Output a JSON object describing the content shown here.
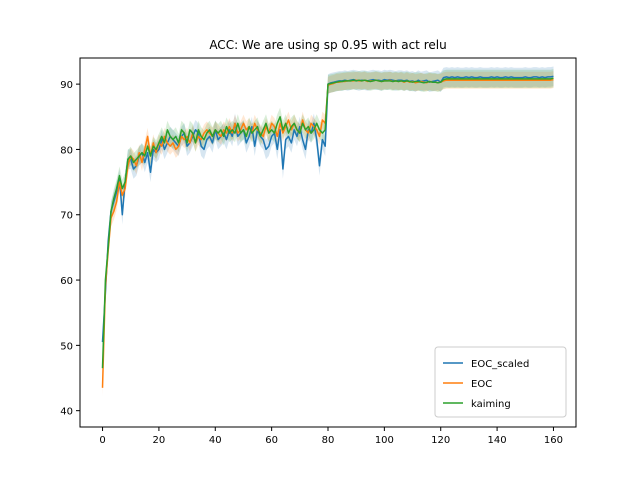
{
  "chart_data": {
    "type": "line",
    "title": "ACC: We are using sp 0.95 with act relu",
    "xlabel": "",
    "ylabel": "",
    "xlim": [
      -8,
      168
    ],
    "ylim": [
      37.5,
      94
    ],
    "xticks": [
      0,
      20,
      40,
      60,
      80,
      100,
      120,
      140,
      160
    ],
    "yticks": [
      40,
      50,
      60,
      70,
      80,
      90
    ],
    "grid": false,
    "legend_position": "lower right",
    "x_start": 0,
    "series": [
      {
        "name": "EOC_scaled",
        "color": "#1f77b4",
        "band_halfwidth": 1.5,
        "values": [
          50.5,
          58,
          66,
          70.5,
          72,
          73.5,
          75.5,
          70,
          75,
          78.5,
          78.5,
          77,
          77.5,
          79,
          79.5,
          78,
          79.5,
          76.5,
          80,
          79.5,
          80,
          81.5,
          80,
          81,
          82,
          81.5,
          81,
          80.5,
          82,
          82.5,
          80.5,
          81,
          82,
          83,
          82.5,
          80.5,
          80,
          81.5,
          82,
          81,
          83,
          81.5,
          82,
          82.5,
          81.5,
          83,
          82,
          84,
          82,
          82.5,
          83,
          81,
          82,
          83.5,
          80.5,
          83,
          82,
          81.5,
          80,
          80.5,
          82,
          82.5,
          80,
          83,
          77,
          81.5,
          82,
          81,
          83,
          82,
          83.5,
          81.5,
          80,
          83,
          82.5,
          84,
          81.5,
          77.5,
          81.5,
          80.5,
          90,
          90.2,
          90.3,
          90.4,
          90.5,
          90.5,
          90.6,
          90.5,
          90.6,
          90.7,
          90.6,
          90.5,
          90.6,
          90.6,
          90.5,
          90.6,
          90.7,
          90.6,
          90.6,
          90.5,
          90.7,
          90.6,
          90.7,
          90.6,
          90.5,
          90.6,
          90.6,
          90.5,
          90.6,
          90.4,
          90.5,
          90.3,
          90.6,
          90.4,
          90.5,
          90.6,
          90.3,
          90.4,
          90.5,
          90.6,
          90.3,
          91,
          91.1,
          91,
          91.1,
          91,
          91.1,
          91,
          91,
          91.1,
          91,
          91.1,
          91,
          91,
          91.1,
          91,
          91,
          91,
          91.1,
          91,
          91.1,
          91,
          91,
          91.1,
          91,
          91.1,
          91,
          91,
          91,
          91,
          91.1,
          91,
          91,
          91.1,
          91.1,
          91,
          91.1,
          91,
          91.1,
          91.1,
          91.2
        ]
      },
      {
        "name": "EOC",
        "color": "#ff7f0e",
        "band_halfwidth": 1.3,
        "values": [
          43.5,
          59,
          64.5,
          69.5,
          70.5,
          72,
          75,
          73,
          74,
          77.5,
          79,
          78.5,
          77.5,
          79.5,
          78,
          80,
          82,
          79,
          81,
          79.5,
          81,
          80.5,
          82,
          81,
          80.5,
          81,
          80,
          80.5,
          82,
          81.5,
          82,
          81,
          82.5,
          81,
          82,
          81.5,
          82.5,
          83,
          82.5,
          82,
          83,
          82.5,
          82,
          83,
          82.5,
          83.5,
          82.5,
          84,
          82.5,
          83,
          84,
          83,
          83.5,
          82.5,
          84,
          83,
          82.5,
          82,
          83.5,
          82.5,
          84,
          83.5,
          82,
          84,
          82.5,
          83.5,
          84.5,
          83,
          84,
          83,
          82.5,
          84.5,
          83,
          82.5,
          84,
          83.5,
          83,
          82,
          84.5,
          84,
          89.8,
          90,
          90.1,
          90.3,
          90.3,
          90.4,
          90.4,
          90.5,
          90.5,
          90.5,
          90.6,
          90.5,
          90.5,
          90.6,
          90.4,
          90.5,
          90.5,
          90.6,
          90.5,
          90.4,
          90.5,
          90.5,
          90.6,
          90.4,
          90.5,
          90.4,
          90.5,
          90.3,
          90.5,
          90.3,
          90.4,
          90.2,
          90.3,
          90.4,
          90.3,
          90.2,
          90.4,
          90.3,
          90.3,
          90.2,
          90.3,
          90.5,
          90.6,
          90.6,
          90.6,
          90.6,
          90.6,
          90.6,
          90.6,
          90.6,
          90.6,
          90.6,
          90.6,
          90.6,
          90.6,
          90.6,
          90.6,
          90.6,
          90.6,
          90.6,
          90.6,
          90.6,
          90.6,
          90.6,
          90.6,
          90.6,
          90.6,
          90.6,
          90.6,
          90.6,
          90.6,
          90.6,
          90.6,
          90.6,
          90.6,
          90.6,
          90.6,
          90.6,
          90.6,
          90.6,
          90.7
        ]
      },
      {
        "name": "kaiming",
        "color": "#2ca02c",
        "band_halfwidth": 1.4,
        "values": [
          46.5,
          60,
          65,
          70.5,
          72.5,
          74,
          76,
          74,
          75,
          78.5,
          79,
          78,
          78.5,
          79,
          79.5,
          79,
          80.5,
          79,
          80.5,
          80,
          81,
          82,
          81,
          83,
          82,
          81.5,
          82,
          81,
          83,
          82.5,
          81,
          83,
          82.5,
          81,
          83,
          82,
          81.5,
          82.5,
          83,
          82,
          83,
          82.5,
          83,
          82,
          83.5,
          82.5,
          83,
          82.5,
          84,
          82.5,
          83,
          82,
          83.5,
          82.5,
          83,
          83.5,
          82,
          83,
          84,
          82.5,
          83,
          82.5,
          84,
          85,
          83,
          84,
          82.5,
          83.5,
          84,
          83,
          82.5,
          84,
          83,
          83.5,
          82.5,
          83,
          84,
          83,
          82.5,
          83,
          90,
          90.1,
          90.2,
          90.3,
          90.4,
          90.4,
          90.5,
          90.5,
          90.5,
          90.6,
          90.5,
          90.6,
          90.5,
          90.6,
          90.5,
          90.4,
          90.5,
          90.6,
          90.5,
          90.4,
          90.5,
          90.5,
          90.5,
          90.4,
          90.5,
          90.4,
          90.5,
          90.4,
          90.5,
          90.4,
          90.3,
          90.4,
          90.4,
          90.3,
          90.2,
          90.3,
          90.4,
          90.3,
          90.3,
          90.2,
          90.3,
          90.7,
          90.8,
          90.8,
          90.8,
          90.8,
          90.8,
          90.8,
          90.8,
          90.8,
          90.8,
          90.8,
          90.8,
          90.8,
          90.8,
          90.8,
          90.8,
          90.8,
          90.8,
          90.8,
          90.8,
          90.8,
          90.8,
          90.8,
          90.8,
          90.8,
          90.8,
          90.8,
          90.8,
          90.8,
          90.8,
          90.8,
          90.8,
          90.8,
          90.8,
          90.8,
          90.8,
          90.8,
          90.8,
          90.8,
          90.9
        ]
      }
    ]
  }
}
